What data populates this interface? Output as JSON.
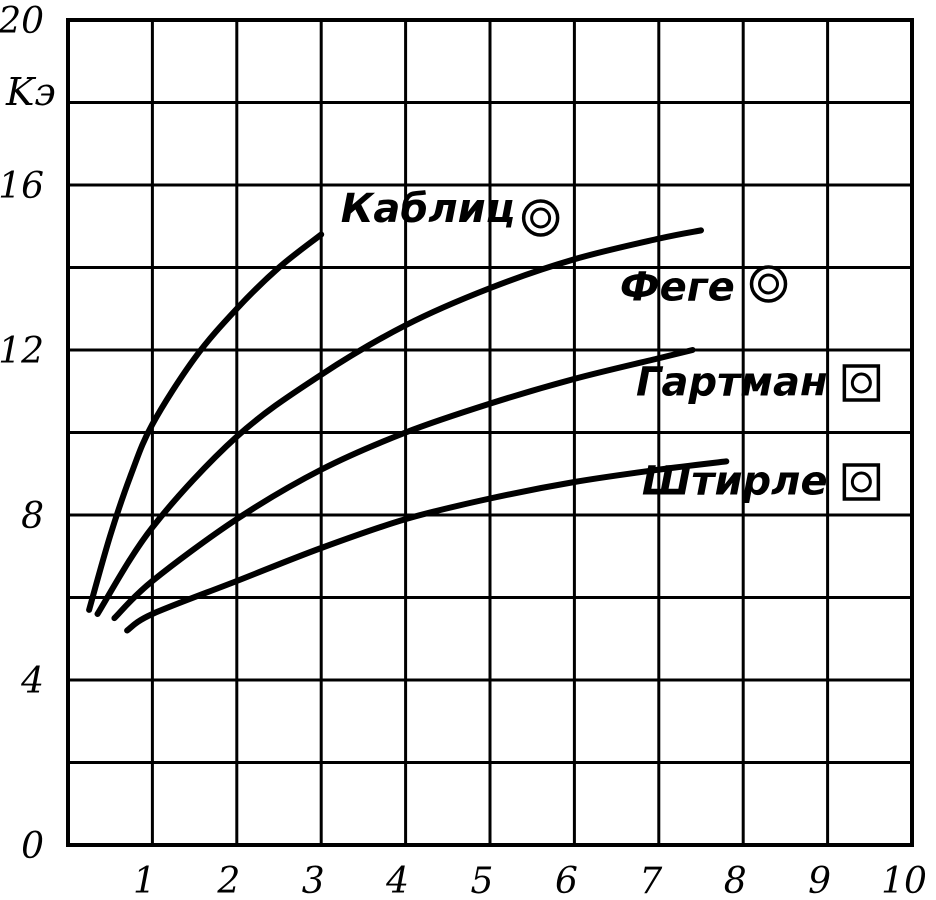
{
  "chart_data": {
    "type": "line",
    "title": "",
    "xlabel": "",
    "ylabel": "Kэ",
    "xlim": [
      0,
      10
    ],
    "ylim": [
      0,
      20
    ],
    "x_ticks": [
      "1",
      "2",
      "3",
      "4",
      "5",
      "6",
      "7",
      "8",
      "9",
      "10"
    ],
    "y_ticks": [
      "0",
      "4",
      "8",
      "12",
      "16",
      "20"
    ],
    "grid": true,
    "legend": "inline-right",
    "series": [
      {
        "name": "Каблиц",
        "marker": "double-circle",
        "points": [
          [
            0.25,
            5.7
          ],
          [
            0.5,
            7.5
          ],
          [
            0.75,
            9.0
          ],
          [
            1.0,
            10.2
          ],
          [
            1.5,
            11.8
          ],
          [
            2.0,
            13.0
          ],
          [
            2.5,
            14.0
          ],
          [
            3.0,
            14.8
          ]
        ]
      },
      {
        "name": "Феге",
        "marker": "double-circle",
        "points": [
          [
            0.35,
            5.6
          ],
          [
            1.0,
            7.7
          ],
          [
            2.0,
            9.9
          ],
          [
            3.0,
            11.4
          ],
          [
            4.0,
            12.6
          ],
          [
            5.0,
            13.5
          ],
          [
            6.0,
            14.2
          ],
          [
            7.0,
            14.7
          ],
          [
            7.5,
            14.9
          ]
        ]
      },
      {
        "name": "Гартман",
        "marker": "circle-in-square",
        "points": [
          [
            0.55,
            5.5
          ],
          [
            1.0,
            6.4
          ],
          [
            2.0,
            7.9
          ],
          [
            3.0,
            9.1
          ],
          [
            4.0,
            10.0
          ],
          [
            5.0,
            10.7
          ],
          [
            6.0,
            11.3
          ],
          [
            7.0,
            11.8
          ],
          [
            7.4,
            12.0
          ]
        ]
      },
      {
        "name": "Штирле",
        "marker": "circle-in-square",
        "points": [
          [
            0.7,
            5.2
          ],
          [
            1.0,
            5.6
          ],
          [
            2.0,
            6.4
          ],
          [
            3.0,
            7.2
          ],
          [
            4.0,
            7.9
          ],
          [
            5.0,
            8.4
          ],
          [
            6.0,
            8.8
          ],
          [
            7.0,
            9.1
          ],
          [
            7.8,
            9.3
          ]
        ]
      }
    ]
  }
}
